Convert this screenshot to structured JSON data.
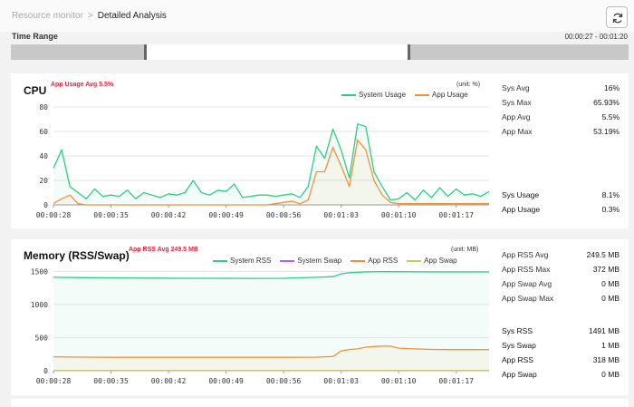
{
  "breadcrumb": {
    "parent": "Resource monitor",
    "separator": ">",
    "current": "Detailed Analysis"
  },
  "time_range": {
    "label": "Time Range",
    "value": "00:00:27 - 00:01:20",
    "selected_fraction": [
      0.225,
      0.64
    ]
  },
  "cpu": {
    "title": "CPU",
    "badge": "App Usage Avg 5.5%",
    "unit": "(unit: %)",
    "legend": [
      "System Usage",
      "App Usage"
    ],
    "colors": {
      "system": "#2ecc8a",
      "app": "#f0923a"
    },
    "stats_top": [
      {
        "label": "Sys Avg",
        "value": "16%"
      },
      {
        "label": "Sys Max",
        "value": "65.93%"
      },
      {
        "label": "App Avg",
        "value": "5.5%"
      },
      {
        "label": "App Max",
        "value": "53.19%"
      }
    ],
    "stats_bottom": [
      {
        "label": "Sys Usage",
        "value": "8.1%"
      },
      {
        "label": "App Usage",
        "value": "0.3%"
      }
    ]
  },
  "memory": {
    "title": "Memory (RSS/Swap)",
    "badge": "App RSS Avg 249.5 MB",
    "unit": "(unit: MB)",
    "legend": [
      "System RSS",
      "System Swap",
      "App RSS",
      "App Swap"
    ],
    "colors": {
      "sys_rss": "#2ecc8a",
      "sys_swap": "#b060e0",
      "app_rss": "#f0923a",
      "app_swap": "#c8d050"
    },
    "stats_top": [
      {
        "label": "App RSS Avg",
        "value": "249.5 MB"
      },
      {
        "label": "App RSS Max",
        "value": "372 MB"
      },
      {
        "label": "App Swap Avg",
        "value": "0 MB"
      },
      {
        "label": "App Swap Max",
        "value": "0 MB"
      }
    ],
    "stats_bottom": [
      {
        "label": "Sys RSS",
        "value": "1491 MB"
      },
      {
        "label": "Sys Swap",
        "value": "1 MB"
      },
      {
        "label": "App RSS",
        "value": "318 MB"
      },
      {
        "label": "App Swap",
        "value": "0 MB"
      }
    ]
  },
  "chart_data": [
    {
      "type": "line",
      "title": "CPU",
      "x_ticks": [
        "00:00:28",
        "00:00:35",
        "00:00:42",
        "00:00:49",
        "00:00:56",
        "00:01:03",
        "00:01:10",
        "00:01:17"
      ],
      "x_range": [
        28,
        81
      ],
      "y_ticks": [
        0,
        20,
        40,
        60,
        80
      ],
      "ylim": [
        0,
        80
      ],
      "grid": true,
      "legend_position": "top-right",
      "series": [
        {
          "name": "System Usage",
          "color": "#2ecc8a",
          "x": [
            28,
            29,
            30,
            31,
            32,
            33,
            34,
            35,
            36,
            37,
            38,
            39,
            40,
            41,
            42,
            43,
            44,
            45,
            46,
            47,
            48,
            49,
            50,
            51,
            52,
            53,
            54,
            55,
            56,
            57,
            58,
            59,
            60,
            61,
            62,
            63,
            64,
            65,
            66,
            67,
            68,
            69,
            70,
            71,
            72,
            73,
            74,
            75,
            76,
            77,
            78,
            79,
            80,
            81
          ],
          "y": [
            30,
            45,
            15,
            10,
            5,
            13,
            7,
            8,
            7,
            12,
            5,
            10,
            8,
            6,
            9,
            8,
            10,
            20,
            10,
            8,
            12,
            11,
            17,
            6,
            7,
            8,
            8,
            7,
            8,
            9,
            6,
            15,
            48,
            38,
            62,
            45,
            22,
            66,
            64,
            27,
            15,
            4,
            5,
            10,
            4,
            12,
            6,
            14,
            7,
            13,
            8,
            9,
            7,
            11
          ]
        },
        {
          "name": "App Usage",
          "color": "#f0923a",
          "x": [
            28,
            29,
            30,
            31,
            32,
            33,
            34,
            35,
            36,
            37,
            38,
            39,
            40,
            41,
            42,
            43,
            44,
            45,
            46,
            47,
            48,
            49,
            50,
            51,
            52,
            53,
            54,
            55,
            56,
            57,
            58,
            59,
            60,
            61,
            62,
            63,
            64,
            65,
            66,
            67,
            68,
            69,
            70,
            71,
            72,
            73,
            74,
            75,
            76,
            77,
            78,
            79,
            80,
            81
          ],
          "y": [
            1,
            5,
            8,
            1,
            0,
            0,
            0,
            0,
            0,
            0,
            0,
            0,
            0,
            0,
            0,
            0,
            0,
            0,
            0,
            0,
            0,
            0,
            0,
            0,
            0,
            0,
            0,
            1,
            2,
            3,
            1,
            4,
            27,
            27,
            47,
            32,
            15,
            53,
            45,
            20,
            8,
            2,
            1,
            1,
            1,
            1,
            1,
            1,
            1,
            1,
            1,
            1,
            1,
            1
          ]
        }
      ]
    },
    {
      "type": "line",
      "title": "Memory (RSS/Swap)",
      "x_ticks": [
        "00:00:28",
        "00:00:35",
        "00:00:42",
        "00:00:49",
        "00:00:56",
        "00:01:03",
        "00:01:10",
        "00:01:17"
      ],
      "x_range": [
        28,
        81
      ],
      "y_ticks": [
        0,
        500,
        1000,
        1500
      ],
      "ylim": [
        0,
        1600
      ],
      "grid": true,
      "legend_position": "top-right",
      "series": [
        {
          "name": "System RSS",
          "color": "#2ecc8a",
          "x": [
            28,
            32,
            36,
            40,
            44,
            48,
            52,
            56,
            60,
            62,
            63,
            64,
            66,
            68,
            70,
            72,
            74,
            76,
            78,
            81
          ],
          "y": [
            1410,
            1405,
            1400,
            1398,
            1395,
            1395,
            1393,
            1395,
            1410,
            1420,
            1460,
            1480,
            1490,
            1495,
            1494,
            1492,
            1491,
            1490,
            1491,
            1491
          ]
        },
        {
          "name": "System Swap",
          "color": "#b060e0",
          "x": [
            28,
            81
          ],
          "y": [
            1,
            1
          ]
        },
        {
          "name": "App RSS",
          "color": "#f0923a",
          "x": [
            28,
            32,
            36,
            40,
            44,
            48,
            52,
            56,
            60,
            62,
            63,
            64,
            65,
            66,
            67,
            68,
            69,
            70,
            72,
            74,
            76,
            78,
            81
          ],
          "y": [
            210,
            205,
            203,
            202,
            202,
            202,
            202,
            203,
            205,
            215,
            300,
            320,
            330,
            355,
            365,
            372,
            370,
            340,
            330,
            322,
            318,
            318,
            318
          ]
        },
        {
          "name": "App Swap",
          "color": "#c8d050",
          "x": [
            28,
            81
          ],
          "y": [
            0,
            0
          ]
        }
      ]
    }
  ]
}
